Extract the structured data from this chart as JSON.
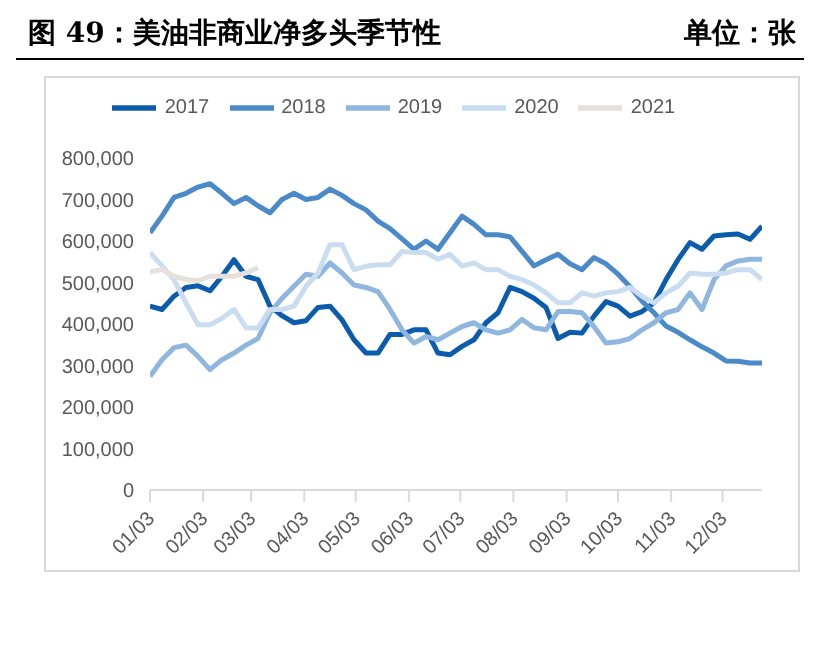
{
  "chart_data": {
    "type": "line",
    "title": "图 49：美油非商业净多头季节性",
    "subtitle": "单位：张",
    "x": [
      "--01-03",
      "--01-10",
      "--01-17",
      "--01-24",
      "--01-31",
      "--02-07",
      "--02-14",
      "--02-21",
      "--02-28",
      "--03-07",
      "--03-14",
      "--03-21",
      "--03-28",
      "--04-04",
      "--04-11",
      "--04-18",
      "--04-25",
      "--05-02",
      "--05-09",
      "--05-16",
      "--05-23",
      "--05-30",
      "--06-06",
      "--06-13",
      "--06-20",
      "--06-27",
      "--07-04",
      "--07-11",
      "--07-18",
      "--07-25",
      "--08-01",
      "--08-08",
      "--08-15",
      "--08-22",
      "--08-29",
      "--09-05",
      "--09-12",
      "--09-19",
      "--09-26",
      "--10-03",
      "--10-10",
      "--10-17",
      "--10-24",
      "--10-31",
      "--11-07",
      "--11-14",
      "--11-21",
      "--11-28",
      "--12-05",
      "--12-12",
      "--12-19",
      "--12-26"
    ],
    "series": [
      {
        "name": "2017",
        "color": "#0b5cad",
        "values": [
          443000,
          435000,
          467000,
          488000,
          492000,
          480000,
          515000,
          555000,
          515000,
          507000,
          443000,
          420000,
          403000,
          408000,
          440000,
          443000,
          410000,
          362000,
          330000,
          330000,
          375000,
          375000,
          386000,
          386000,
          330000,
          326000,
          346000,
          362000,
          403000,
          427000,
          488000,
          478000,
          462000,
          440000,
          365000,
          380000,
          378000,
          419000,
          454000,
          443000,
          419000,
          430000,
          451000,
          507000,
          555000,
          596000,
          580000,
          612000,
          615000,
          617000,
          604000,
          636000
        ]
      },
      {
        "name": "2018",
        "color": "#4a8ac8",
        "values": [
          620000,
          660000,
          705000,
          715000,
          730000,
          738000,
          715000,
          690000,
          705000,
          685000,
          668000,
          700000,
          715000,
          700000,
          705000,
          725000,
          710000,
          690000,
          675000,
          648000,
          630000,
          605000,
          580000,
          600000,
          580000,
          620000,
          660000,
          640000,
          615000,
          615000,
          610000,
          575000,
          540000,
          555000,
          568000,
          545000,
          531000,
          560000,
          545000,
          520000,
          490000,
          455000,
          427000,
          395000,
          380000,
          362000,
          345000,
          330000,
          311000,
          310000,
          306000,
          306000
        ]
      },
      {
        "name": "2019",
        "color": "#8fb6df",
        "values": [
          274000,
          314000,
          343000,
          349000,
          322000,
          290000,
          314000,
          330000,
          349000,
          365000,
          427000,
          462000,
          491000,
          520000,
          515000,
          547000,
          523000,
          494000,
          488000,
          478000,
          435000,
          386000,
          354000,
          370000,
          362000,
          378000,
          394000,
          403000,
          386000,
          378000,
          386000,
          411000,
          391000,
          386000,
          430000,
          430000,
          427000,
          394000,
          354000,
          357000,
          365000,
          386000,
          403000,
          427000,
          435000,
          475000,
          435000,
          507000,
          540000,
          552000,
          556000,
          556000
        ]
      },
      {
        "name": "2020",
        "color": "#c9dcf0",
        "values": [
          572000,
          540000,
          507000,
          451000,
          398000,
          398000,
          414000,
          435000,
          391000,
          390000,
          435000,
          435000,
          443000,
          491000,
          523000,
          591000,
          591000,
          531000,
          539000,
          543000,
          543000,
          575000,
          572000,
          572000,
          556000,
          568000,
          540000,
          547000,
          531000,
          531000,
          515000,
          507000,
          494000,
          475000,
          451000,
          451000,
          475000,
          467000,
          475000,
          478000,
          488000,
          467000,
          451000,
          475000,
          491000,
          523000,
          520000,
          520000,
          523000,
          531000,
          531000,
          507000
        ]
      },
      {
        "name": "2021",
        "color": "#e5e0da",
        "values": [
          526000,
          531000,
          515000,
          507000,
          504000,
          515000,
          515000,
          515000,
          523000,
          536000,
          null,
          null,
          null,
          null,
          null,
          null,
          null,
          null,
          null,
          null,
          null,
          null,
          null,
          null,
          null,
          null,
          null,
          null,
          null,
          null,
          null,
          null,
          null,
          null,
          null,
          null,
          null,
          null,
          null,
          null,
          null,
          null,
          null,
          null,
          null,
          null,
          null,
          null,
          null,
          null,
          null,
          null
        ]
      }
    ],
    "xlim": [
      "--01-03",
      "--12-26"
    ],
    "xticks": [
      {
        "value": "--01-03",
        "label": "01/03"
      },
      {
        "value": "--02-03",
        "label": "02/03"
      },
      {
        "value": "--03-03",
        "label": "03/03"
      },
      {
        "value": "--04-03",
        "label": "04/03"
      },
      {
        "value": "--05-03",
        "label": "05/03"
      },
      {
        "value": "--06-03",
        "label": "06/03"
      },
      {
        "value": "--07-03",
        "label": "07/03"
      },
      {
        "value": "--08-03",
        "label": "08/03"
      },
      {
        "value": "--09-03",
        "label": "09/03"
      },
      {
        "value": "--10-03",
        "label": "10/03"
      },
      {
        "value": "--11-03",
        "label": "11/03"
      },
      {
        "value": "--12-03",
        "label": "12/03"
      }
    ],
    "ylim": [
      0,
      800000
    ],
    "yticks": [
      0,
      {
        "value": 100000,
        "label": "100,000"
      },
      {
        "value": 200000,
        "label": "200,000"
      },
      {
        "value": 300000,
        "label": "300,000"
      },
      {
        "value": 400000,
        "label": "400,000"
      },
      {
        "value": 500000,
        "label": "500,000"
      },
      {
        "value": 600000,
        "label": "600,000"
      },
      {
        "value": 700000,
        "label": "700,000"
      },
      {
        "value": 800000,
        "label": "800,000"
      }
    ],
    "grid": false,
    "legend": "top",
    "marker": "none",
    "line_style": "solid"
  }
}
